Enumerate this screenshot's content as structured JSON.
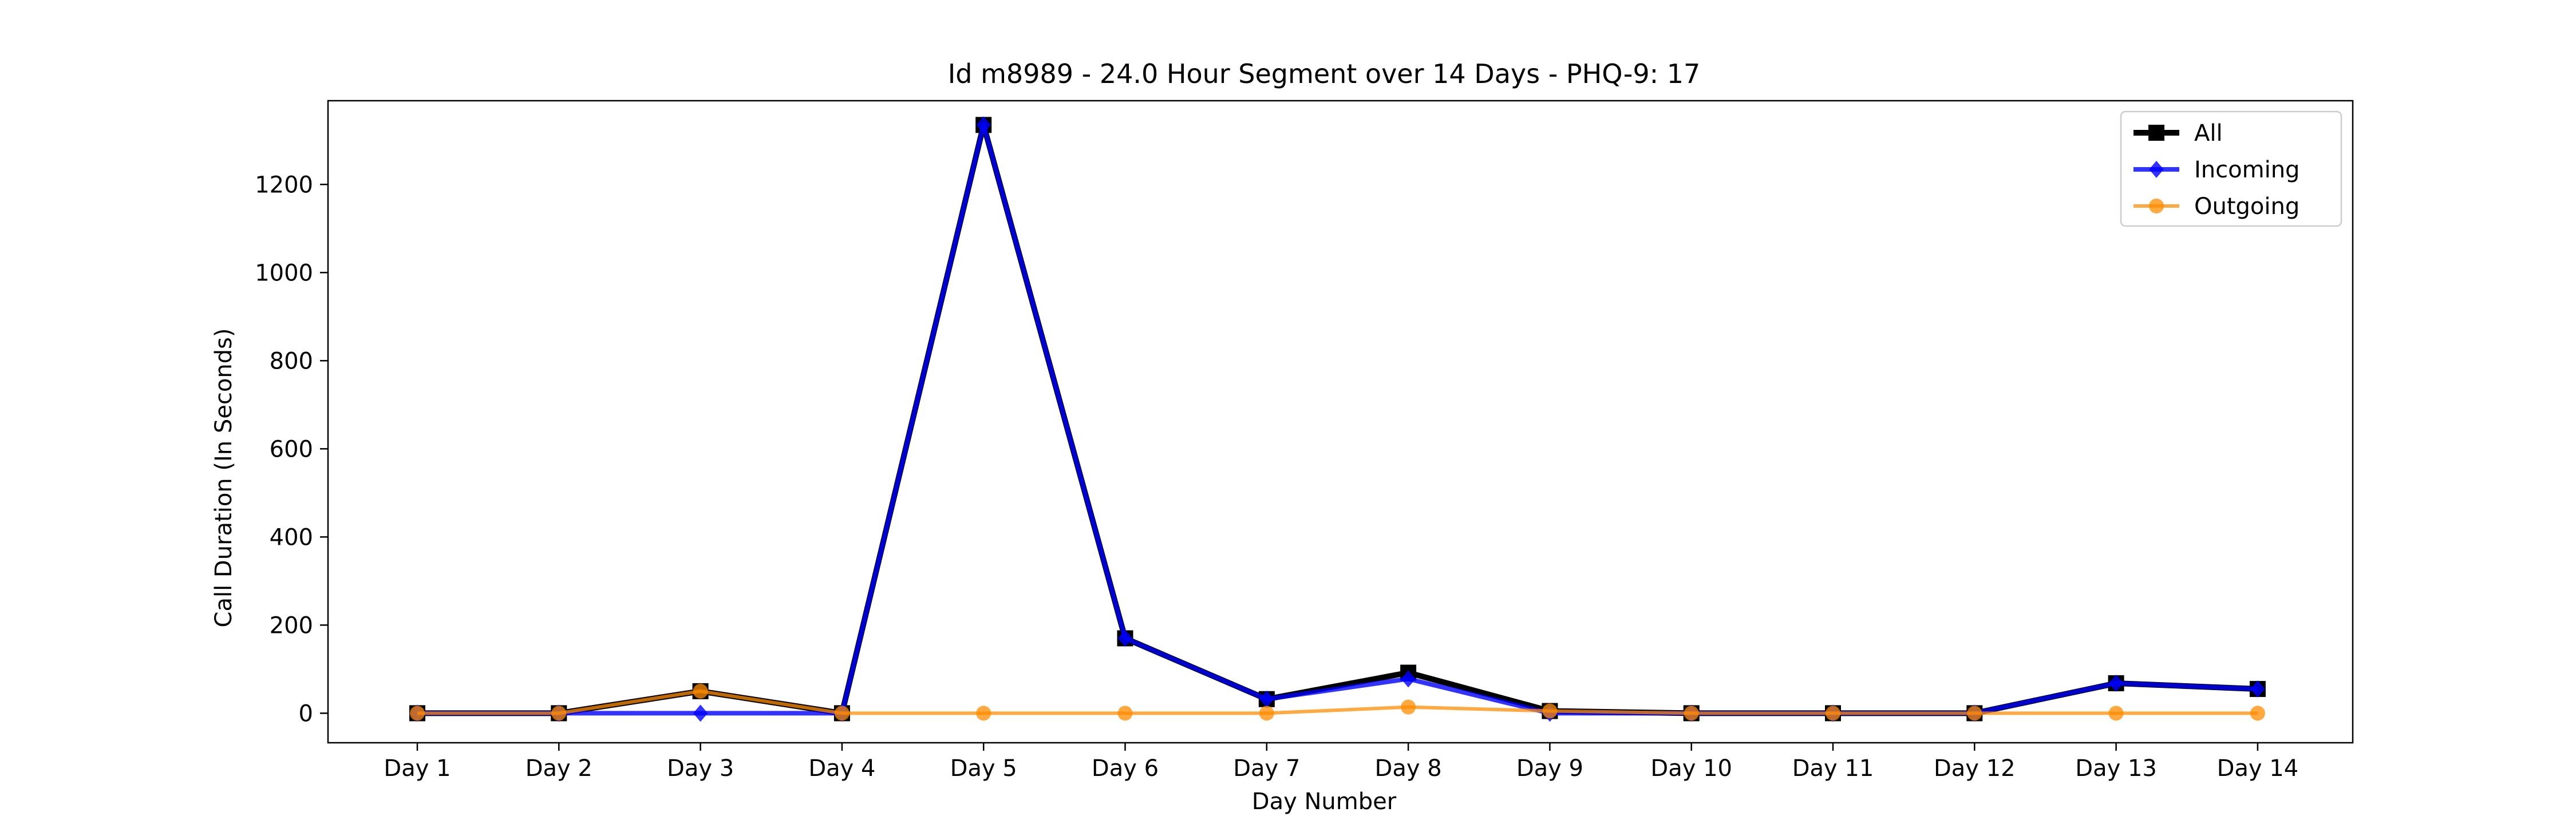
{
  "chart_data": {
    "type": "line",
    "title": "Id m8989 - 24.0 Hour Segment over 14 Days - PHQ-9: 17",
    "xlabel": "Day Number",
    "ylabel": "Call Duration (In Seconds)",
    "categories": [
      "Day 1",
      "Day 2",
      "Day 3",
      "Day 4",
      "Day 5",
      "Day 6",
      "Day 7",
      "Day 8",
      "Day 9",
      "Day 10",
      "Day 11",
      "Day 12",
      "Day 13",
      "Day 14"
    ],
    "ylim": [
      -67,
      1390
    ],
    "yticks": [
      0,
      200,
      400,
      600,
      800,
      1000,
      1200
    ],
    "grid": false,
    "legend_position": "top-right",
    "series": [
      {
        "name": "All",
        "color": "#000000",
        "marker": "square",
        "values": [
          0,
          0,
          50,
          0,
          1335,
          170,
          32,
          92,
          5,
          0,
          0,
          0,
          68,
          55
        ]
      },
      {
        "name": "Incoming",
        "color": "#0000ff",
        "marker": "diamond",
        "values": [
          0,
          0,
          0,
          0,
          1335,
          170,
          32,
          78,
          0,
          0,
          0,
          0,
          68,
          55
        ]
      },
      {
        "name": "Outgoing",
        "color": "#ff8c00",
        "marker": "circle",
        "values": [
          0,
          0,
          50,
          0,
          0,
          0,
          0,
          14,
          5,
          0,
          0,
          0,
          0,
          0
        ]
      }
    ]
  }
}
